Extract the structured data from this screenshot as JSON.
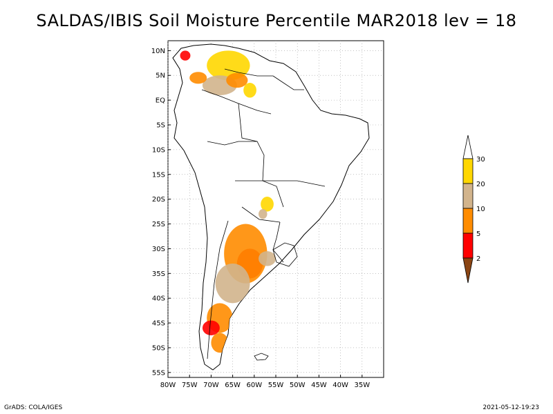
{
  "title": "SALDAS/IBIS Soil Moisture Percentile MAR2018 lev = 18",
  "footer": {
    "left": "GrADS: COLA/IGES",
    "right": "2021-05-12-19:23"
  },
  "map": {
    "lon_range": [
      -80,
      -30
    ],
    "lat_range": [
      -56,
      12
    ],
    "lat_ticks": [
      {
        "value": 10,
        "label": "10N"
      },
      {
        "value": 5,
        "label": "5N"
      },
      {
        "value": 0,
        "label": "EQ"
      },
      {
        "value": -5,
        "label": "5S"
      },
      {
        "value": -10,
        "label": "10S"
      },
      {
        "value": -15,
        "label": "15S"
      },
      {
        "value": -20,
        "label": "20S"
      },
      {
        "value": -25,
        "label": "25S"
      },
      {
        "value": -30,
        "label": "30S"
      },
      {
        "value": -35,
        "label": "35S"
      },
      {
        "value": -40,
        "label": "40S"
      },
      {
        "value": -45,
        "label": "45S"
      },
      {
        "value": -50,
        "label": "50S"
      },
      {
        "value": -55,
        "label": "55S"
      }
    ],
    "lon_ticks": [
      {
        "value": -80,
        "label": "80W"
      },
      {
        "value": -75,
        "label": "75W"
      },
      {
        "value": -70,
        "label": "70W"
      },
      {
        "value": -65,
        "label": "65W"
      },
      {
        "value": -60,
        "label": "60W"
      },
      {
        "value": -55,
        "label": "55W"
      },
      {
        "value": -50,
        "label": "50W"
      },
      {
        "value": -45,
        "label": "45W"
      },
      {
        "value": -40,
        "label": "40W"
      },
      {
        "value": -35,
        "label": "35W"
      }
    ],
    "grid": true
  },
  "legend": {
    "levels": [
      "2",
      "5",
      "10",
      "20",
      "30"
    ],
    "colors": [
      "#8b4513",
      "#ff0000",
      "#ff8c00",
      "#d2b48c",
      "#ffd700",
      "#ffffff"
    ]
  },
  "chart_data": {
    "type": "heatmap",
    "title": "SALDAS/IBIS Soil Moisture Percentile MAR2018 lev = 18",
    "xlabel": "",
    "ylabel": "",
    "x_range": [
      -80,
      -30
    ],
    "y_range": [
      -56,
      12
    ],
    "grid": true,
    "color_scale": {
      "levels": [
        2,
        5,
        10,
        20,
        30
      ],
      "colors": [
        "#8b4513",
        "#ff0000",
        "#ff8c00",
        "#d2b48c",
        "#ffd700",
        "#ffffff"
      ]
    },
    "regions": [
      {
        "lon": -66,
        "lat": 7,
        "rx": 5,
        "ry": 3,
        "class": "20-30"
      },
      {
        "lon": -68,
        "lat": 3,
        "rx": 4,
        "ry": 2,
        "class": "10-20"
      },
      {
        "lon": -64,
        "lat": 4,
        "rx": 2.5,
        "ry": 1.5,
        "class": "5-10"
      },
      {
        "lon": -73,
        "lat": 4.5,
        "rx": 2,
        "ry": 1.2,
        "class": "5-10"
      },
      {
        "lon": -76,
        "lat": 9,
        "rx": 1.2,
        "ry": 1,
        "class": "2-5"
      },
      {
        "lon": -61,
        "lat": 2,
        "rx": 1.5,
        "ry": 1.5,
        "class": "20-30"
      },
      {
        "lon": -61,
        "lat": -33,
        "rx": 3,
        "ry": 3,
        "class": "2-5"
      },
      {
        "lon": -62,
        "lat": -31,
        "rx": 5,
        "ry": 6,
        "class": "5-10"
      },
      {
        "lon": -65,
        "lat": -37,
        "rx": 4,
        "ry": 4,
        "class": "10-20"
      },
      {
        "lon": -57,
        "lat": -32,
        "rx": 2,
        "ry": 1.5,
        "class": "10-20"
      },
      {
        "lon": -68,
        "lat": -44,
        "rx": 3,
        "ry": 3,
        "class": "5-10"
      },
      {
        "lon": -70,
        "lat": -46,
        "rx": 2,
        "ry": 1.5,
        "class": "2-5"
      },
      {
        "lon": -68,
        "lat": -49,
        "rx": 2,
        "ry": 2,
        "class": "5-10"
      },
      {
        "lon": -57,
        "lat": -21,
        "rx": 1.5,
        "ry": 1.5,
        "class": "20-30"
      },
      {
        "lon": -58,
        "lat": -23,
        "rx": 1,
        "ry": 1,
        "class": "10-20"
      }
    ]
  }
}
